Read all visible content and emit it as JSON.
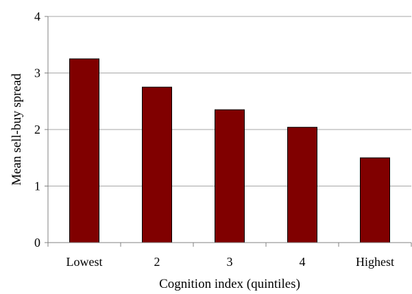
{
  "chart_data": {
    "type": "bar",
    "categories": [
      "Lowest",
      "2",
      "3",
      "4",
      "Highest"
    ],
    "values": [
      3.25,
      2.75,
      2.35,
      2.04,
      1.5
    ],
    "xlabel": "Cognition index (quintiles)",
    "ylabel": "Mean sell-buy spread",
    "ylim": [
      0,
      4
    ],
    "yticks": [
      "0",
      "1",
      "2",
      "3",
      "4"
    ],
    "grid": true,
    "legend": "none",
    "bar_color": "#800000",
    "gridline_color": "#a6a6a6"
  }
}
